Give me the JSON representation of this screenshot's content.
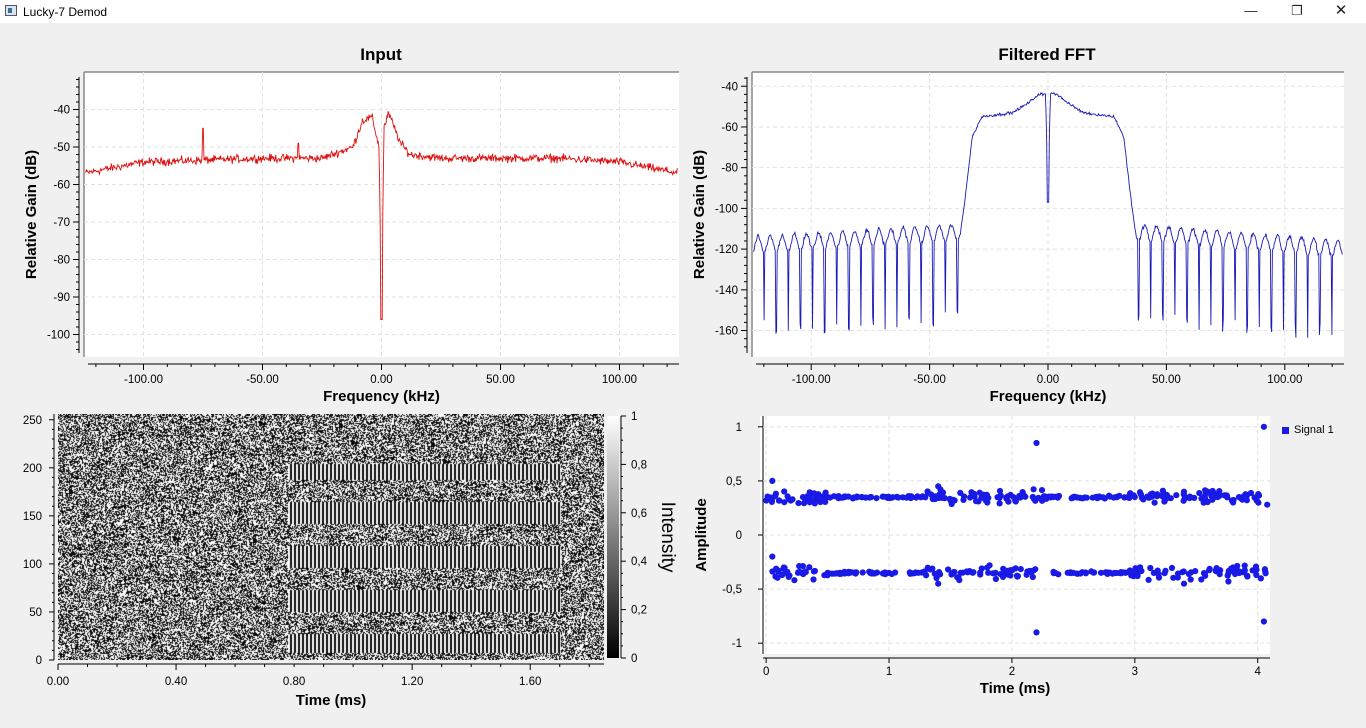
{
  "window": {
    "title": "Lucky-7 Demod",
    "min_icon": "minimize-icon",
    "max_icon": "restore-icon",
    "close_icon": "close-icon"
  },
  "panels": {
    "input": {
      "title": "Input",
      "xlabel": "Frequency (kHz)",
      "ylabel": "Relative Gain (dB)"
    },
    "fft": {
      "title": "Filtered FFT",
      "xlabel": "Frequency (kHz)",
      "ylabel": "Relative Gain (dB)"
    },
    "waterfall": {
      "xlabel": "Time (ms)",
      "colorbar_label": "Intensity"
    },
    "constellation": {
      "xlabel": "Time (ms)",
      "ylabel": "Amplitude",
      "legend": "Signal 1"
    }
  },
  "chart_data": [
    {
      "type": "line",
      "title": "Input",
      "xlabel": "Frequency (kHz)",
      "ylabel": "Relative Gain (dB)",
      "xlim": [
        -125,
        125
      ],
      "ylim": [
        -106,
        -30
      ],
      "xticks": [
        "-100.00",
        "-50.00",
        "0.00",
        "50.00",
        "100.00"
      ],
      "yticks": [
        "-40",
        "-50",
        "-60",
        "-70",
        "-80",
        "-90",
        "-100"
      ],
      "color": "#e01010",
      "grid": true,
      "series": [
        {
          "x": [
            -125,
            -100,
            -75,
            -50,
            -25,
            -12,
            -8,
            -4,
            -1,
            0,
            1,
            3,
            8,
            12,
            25,
            50,
            75,
            100,
            125
          ],
          "values": [
            -57,
            -54,
            -53.5,
            -53,
            -53,
            -50,
            -43,
            -42,
            -50,
            -96,
            -45,
            -41,
            -49,
            -52,
            -53,
            -53,
            -53,
            -54,
            -57
          ]
        }
      ]
    },
    {
      "type": "line",
      "title": "Filtered FFT",
      "xlabel": "Frequency (kHz)",
      "ylabel": "Relative Gain (dB)",
      "xlim": [
        -125,
        125
      ],
      "ylim": [
        -173,
        -33
      ],
      "xticks": [
        "-100.00",
        "-50.00",
        "0.00",
        "50.00",
        "100.00"
      ],
      "yticks": [
        "-40",
        "-60",
        "-80",
        "-100",
        "-120",
        "-140",
        "-160"
      ],
      "color": "#1a1ab8",
      "grid": true,
      "series": [
        {
          "x": [
            -125,
            -40,
            -37,
            -35,
            -32,
            -28,
            -15,
            -8,
            -4,
            -1,
            0,
            1,
            4,
            8,
            15,
            28,
            32,
            35,
            37,
            40,
            125
          ],
          "values": [
            -118,
            -112,
            -112,
            -95,
            -65,
            -55,
            -53,
            -48,
            -44,
            -44,
            -97,
            -43,
            -44,
            -48,
            -53,
            -55,
            -65,
            -95,
            -112,
            -112,
            -120
          ]
        }
      ]
    },
    {
      "type": "heatmap",
      "xlabel": "Time (ms)",
      "ylabel": "",
      "xlim": [
        0,
        1.85
      ],
      "ylim": [
        0,
        256
      ],
      "xticks": [
        "0.00",
        "0.40",
        "0.80",
        "1.20",
        "1.60"
      ],
      "yticks": [
        "0",
        "50",
        "100",
        "150",
        "200",
        "250"
      ],
      "colorbar": {
        "label": "Intensity",
        "ticks": [
          "0",
          "0,2",
          "0,4",
          "0,6",
          "0,8",
          "1"
        ],
        "range": [
          0,
          1
        ]
      }
    },
    {
      "type": "scatter",
      "xlabel": "Time (ms)",
      "ylabel": "Amplitude",
      "xlim": [
        -0.05,
        4.1
      ],
      "ylim": [
        -1.1,
        1.1
      ],
      "xticks": [
        "0",
        "1",
        "2",
        "3",
        "4"
      ],
      "yticks": [
        "1",
        "0,5",
        "0",
        "-0,5",
        "-1"
      ],
      "legend": "top-right",
      "series": [
        {
          "name": "Signal 1",
          "color": "#1a1ae6",
          "x": [
            0.05,
            0.3,
            0.5,
            1.0,
            1.4,
            1.8,
            2.2,
            2.5,
            3.0,
            3.4,
            3.8,
            4.05,
            0.05,
            0.3,
            0.5,
            1.0,
            1.4,
            1.8,
            2.2,
            2.5,
            3.0,
            3.4,
            3.8,
            4.05
          ],
          "values": [
            0.5,
            0.35,
            0.35,
            0.35,
            0.45,
            0.3,
            0.85,
            0.35,
            0.35,
            0.4,
            0.3,
            1.0,
            -0.2,
            -0.35,
            -0.35,
            -0.35,
            -0.45,
            -0.3,
            -0.9,
            -0.35,
            -0.35,
            -0.45,
            -0.3,
            -0.8
          ]
        }
      ]
    }
  ]
}
